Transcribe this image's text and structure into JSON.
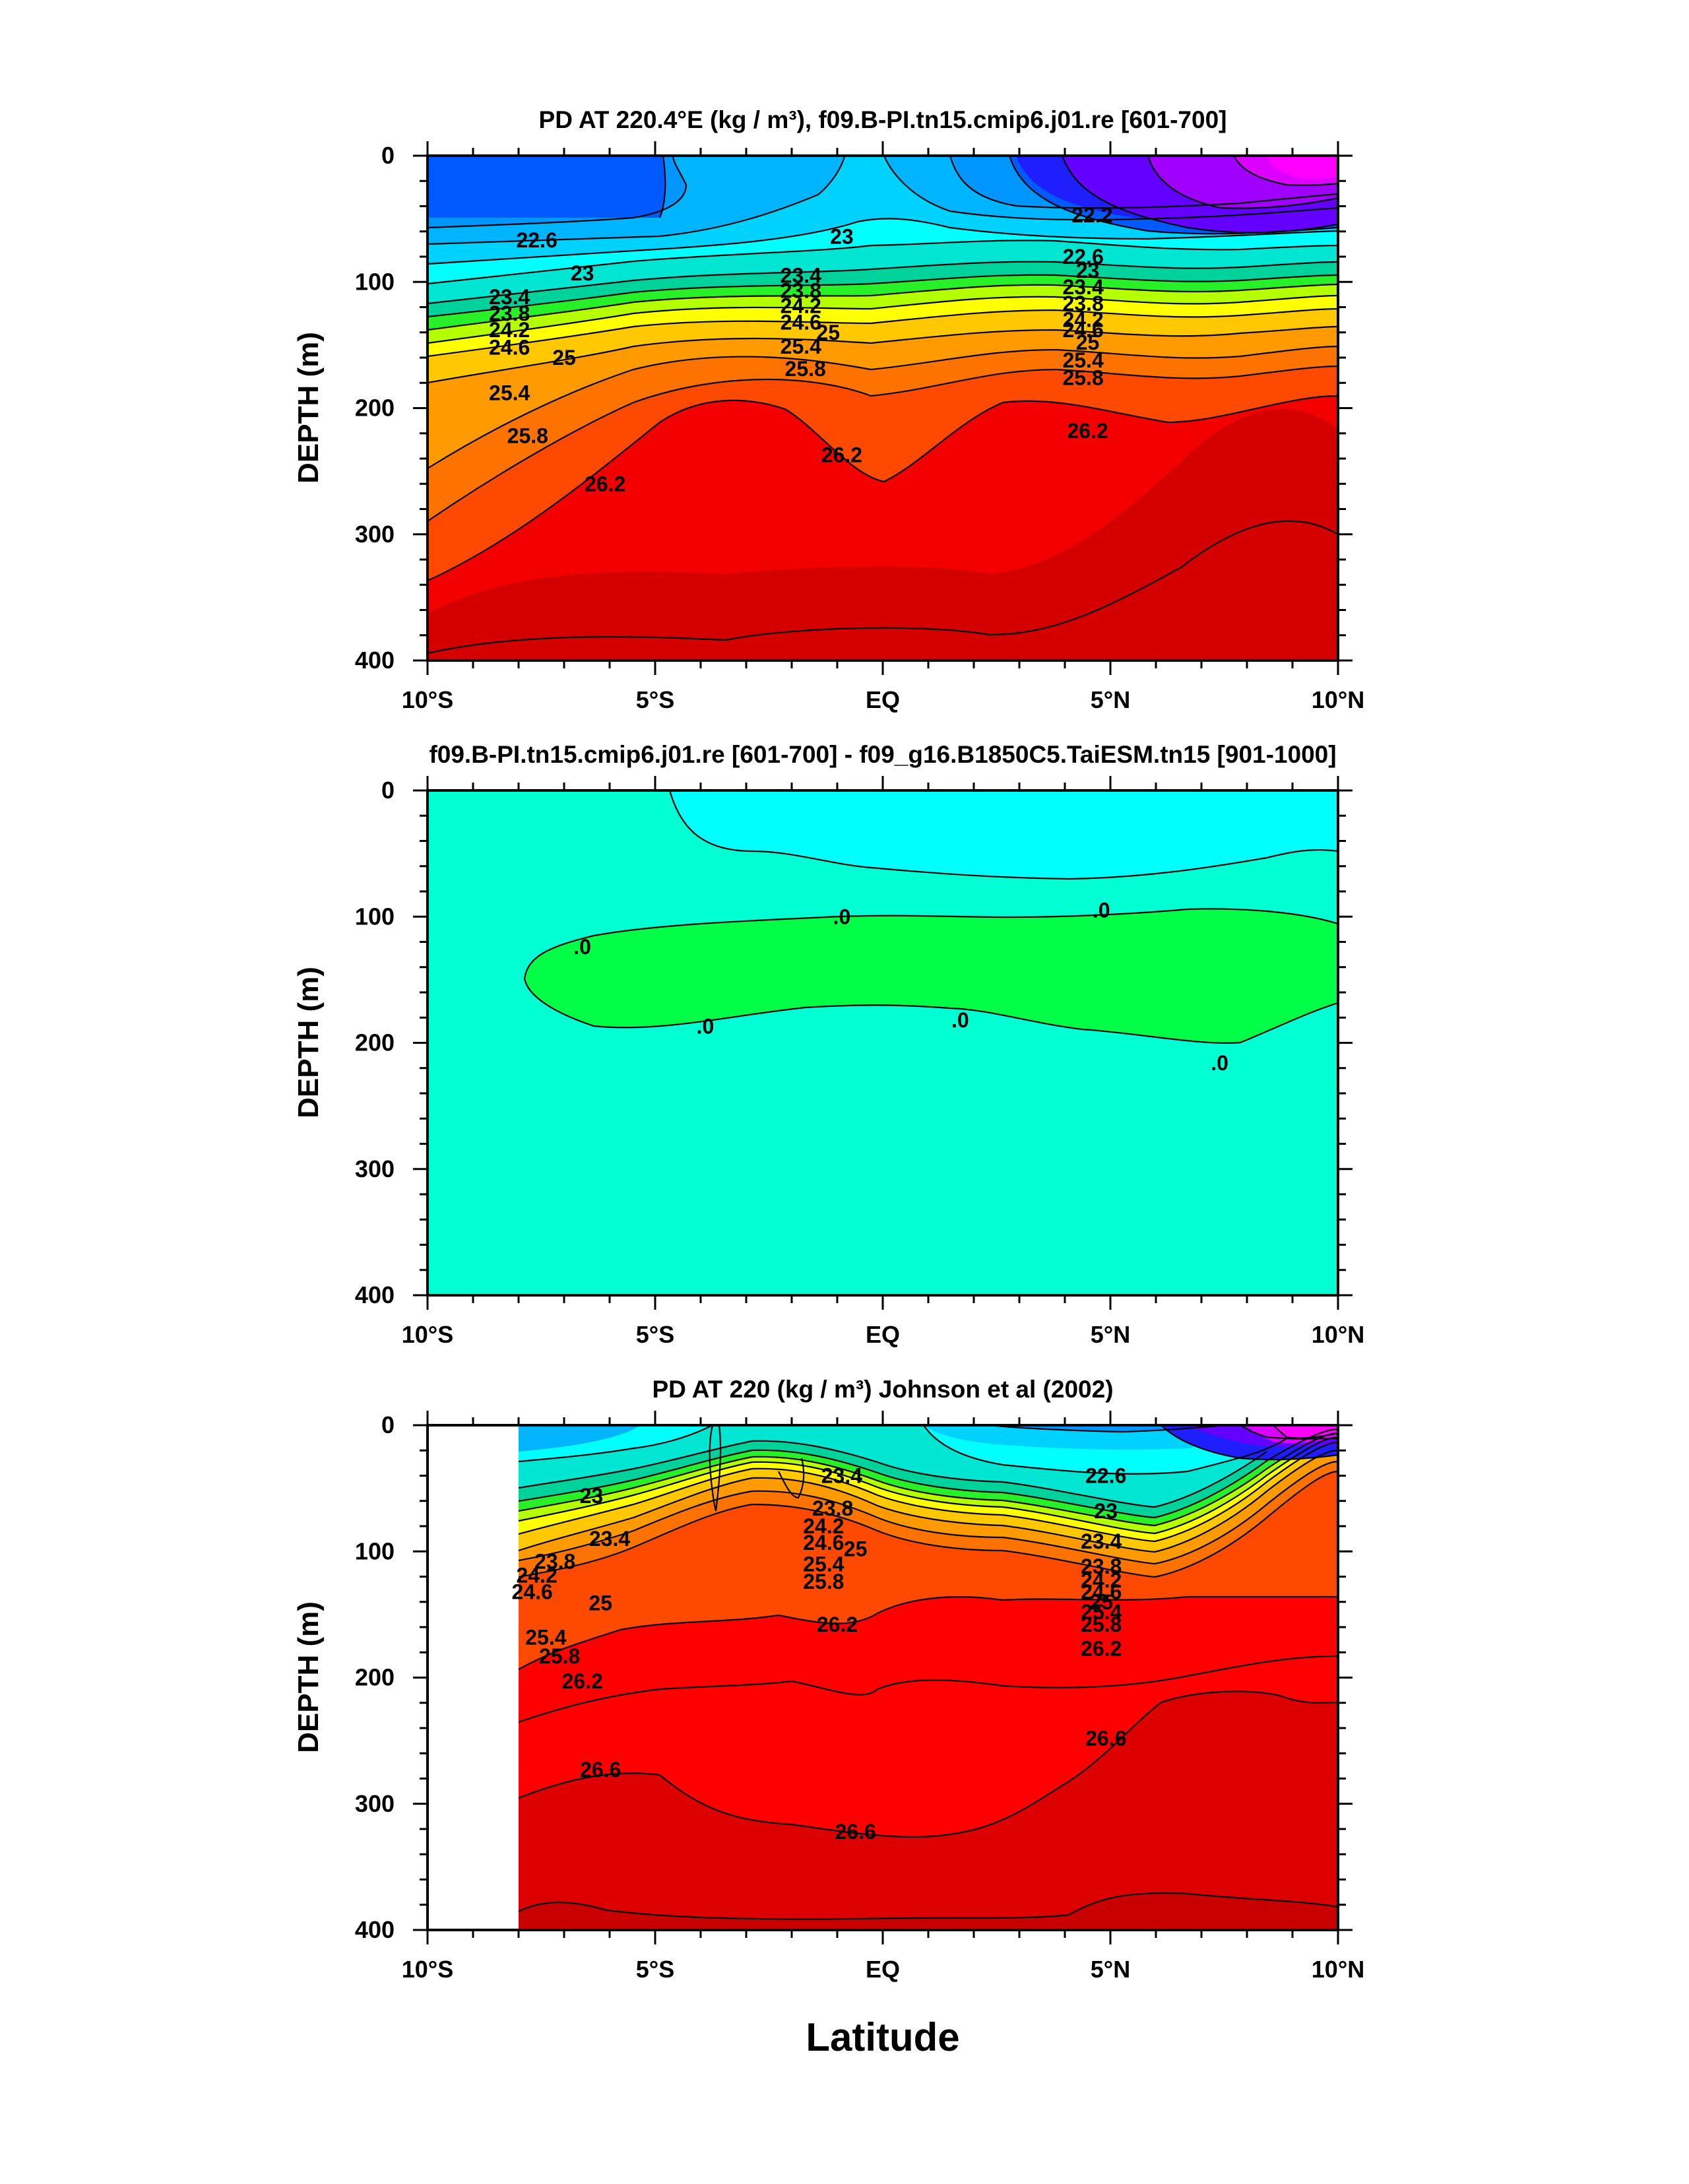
{
  "figure": {
    "xlabel": "Latitude"
  },
  "chart_data": [
    {
      "type": "contour",
      "title": "PD AT 220.4°E (kg / m³), f09.B-PI.tn15.cmip6.j01.re [601-700]",
      "ylabel": "DEPTH (m)",
      "xlim": [
        -10,
        10
      ],
      "ylim": [
        400,
        0
      ],
      "y_inverted": true,
      "yticks": [
        0,
        100,
        200,
        300,
        400
      ],
      "xticks": [
        -10,
        -5,
        0,
        5,
        10
      ],
      "xtick_labels": [
        "10°S",
        "5°S",
        "EQ",
        "5°N",
        "10°N"
      ],
      "levels": [
        21.4,
        21.8,
        22.2,
        22.6,
        23,
        23.4,
        23.8,
        24.2,
        24.6,
        25,
        25.4,
        25.8,
        26.2,
        26.6
      ],
      "contour_labels": [
        {
          "text": "22.6",
          "x": -7.6,
          "y": 67
        },
        {
          "text": "23",
          "x": -6.6,
          "y": 93
        },
        {
          "text": "23.4",
          "x": -8.2,
          "y": 112
        },
        {
          "text": "23.8",
          "x": -8.2,
          "y": 125
        },
        {
          "text": "24.2",
          "x": -8.2,
          "y": 138
        },
        {
          "text": "24.6",
          "x": -8.2,
          "y": 152
        },
        {
          "text": "25",
          "x": -7.0,
          "y": 160
        },
        {
          "text": "25.4",
          "x": -8.2,
          "y": 188
        },
        {
          "text": "25.8",
          "x": -7.8,
          "y": 222
        },
        {
          "text": "26.2",
          "x": -6.1,
          "y": 260
        },
        {
          "text": "23",
          "x": -0.9,
          "y": 64
        },
        {
          "text": "23.4",
          "x": -1.8,
          "y": 95
        },
        {
          "text": "23.8",
          "x": -1.8,
          "y": 107
        },
        {
          "text": "24.2",
          "x": -1.8,
          "y": 119
        },
        {
          "text": "24.6",
          "x": -1.8,
          "y": 132
        },
        {
          "text": "25",
          "x": -1.2,
          "y": 140
        },
        {
          "text": "25.4",
          "x": -1.8,
          "y": 151
        },
        {
          "text": "25.8",
          "x": -1.7,
          "y": 169
        },
        {
          "text": "26.2",
          "x": -0.9,
          "y": 237
        },
        {
          "text": "22.2",
          "x": 4.6,
          "y": 47
        },
        {
          "text": "22.6",
          "x": 4.4,
          "y": 80
        },
        {
          "text": "23",
          "x": 4.5,
          "y": 91
        },
        {
          "text": "23.4",
          "x": 4.4,
          "y": 104
        },
        {
          "text": "23.8",
          "x": 4.4,
          "y": 117
        },
        {
          "text": "24.2",
          "x": 4.4,
          "y": 130
        },
        {
          "text": "24.6",
          "x": 4.4,
          "y": 138
        },
        {
          "text": "25",
          "x": 4.5,
          "y": 148
        },
        {
          "text": "25.4",
          "x": 4.4,
          "y": 162
        },
        {
          "text": "25.8",
          "x": 4.4,
          "y": 176
        },
        {
          "text": "26.2",
          "x": 4.5,
          "y": 218
        }
      ]
    },
    {
      "type": "contour",
      "title": "f09.B-PI.tn15.cmip6.j01.re [601-700] - f09_g16.B1850C5.TaiESM.tn15 [901-1000]",
      "ylabel": "DEPTH (m)",
      "xlim": [
        -10,
        10
      ],
      "ylim": [
        400,
        0
      ],
      "y_inverted": true,
      "yticks": [
        0,
        100,
        200,
        300,
        400
      ],
      "xticks": [
        -10,
        -5,
        0,
        5,
        10
      ],
      "xtick_labels": [
        "10°S",
        "5°S",
        "EQ",
        "5°N",
        "10°N"
      ],
      "contour_labels": [
        {
          "text": ".0",
          "x": -6.6,
          "y": 124
        },
        {
          "text": ".0",
          "x": -0.9,
          "y": 100
        },
        {
          "text": ".0",
          "x": 4.8,
          "y": 95
        },
        {
          "text": ".0",
          "x": -3.9,
          "y": 187
        },
        {
          "text": ".0",
          "x": 1.7,
          "y": 182
        },
        {
          "text": ".0",
          "x": 7.4,
          "y": 216
        }
      ]
    },
    {
      "type": "contour",
      "title": "PD AT 220 (kg / m³) Johnson et al (2002)",
      "ylabel": "DEPTH (m)",
      "xlim": [
        -10,
        10
      ],
      "ylim": [
        400,
        0
      ],
      "y_inverted": true,
      "yticks": [
        0,
        100,
        200,
        300,
        400
      ],
      "xticks": [
        -10,
        -5,
        0,
        5,
        10
      ],
      "xtick_labels": [
        "10°S",
        "5°S",
        "EQ",
        "5°N",
        "10°N"
      ],
      "data_xrange": [
        -8,
        10
      ],
      "contour_labels": [
        {
          "text": "23",
          "x": -6.4,
          "y": 56
        },
        {
          "text": "23.4",
          "x": -6.0,
          "y": 90
        },
        {
          "text": "23.8",
          "x": -7.2,
          "y": 108
        },
        {
          "text": "24.2",
          "x": -7.6,
          "y": 119
        },
        {
          "text": "24.6",
          "x": -7.7,
          "y": 132
        },
        {
          "text": "25",
          "x": -6.2,
          "y": 141
        },
        {
          "text": "25.4",
          "x": -7.4,
          "y": 168
        },
        {
          "text": "25.8",
          "x": -7.1,
          "y": 183
        },
        {
          "text": "26.2",
          "x": -6.6,
          "y": 203
        },
        {
          "text": "26.6",
          "x": -6.2,
          "y": 273
        },
        {
          "text": "23.4",
          "x": -0.9,
          "y": 40
        },
        {
          "text": "23.8",
          "x": -1.1,
          "y": 66
        },
        {
          "text": "24.2",
          "x": -1.3,
          "y": 80
        },
        {
          "text": "24.6",
          "x": -1.3,
          "y": 93
        },
        {
          "text": "25",
          "x": -0.6,
          "y": 98
        },
        {
          "text": "25.4",
          "x": -1.3,
          "y": 110
        },
        {
          "text": "25.8",
          "x": -1.3,
          "y": 124
        },
        {
          "text": "26.2",
          "x": -1.0,
          "y": 158
        },
        {
          "text": "26.6",
          "x": -0.6,
          "y": 322
        },
        {
          "text": "22.6",
          "x": 4.9,
          "y": 40
        },
        {
          "text": "23",
          "x": 4.9,
          "y": 68
        },
        {
          "text": "23.4",
          "x": 4.8,
          "y": 92
        },
        {
          "text": "23.8",
          "x": 4.8,
          "y": 112
        },
        {
          "text": "24.2",
          "x": 4.8,
          "y": 123
        },
        {
          "text": "24.6",
          "x": 4.8,
          "y": 132
        },
        {
          "text": "25",
          "x": 4.8,
          "y": 140
        },
        {
          "text": "25.4",
          "x": 4.8,
          "y": 148
        },
        {
          "text": "25.8",
          "x": 4.8,
          "y": 158
        },
        {
          "text": "26.2",
          "x": 4.8,
          "y": 177
        },
        {
          "text": "26.6",
          "x": 4.9,
          "y": 248
        }
      ]
    }
  ]
}
